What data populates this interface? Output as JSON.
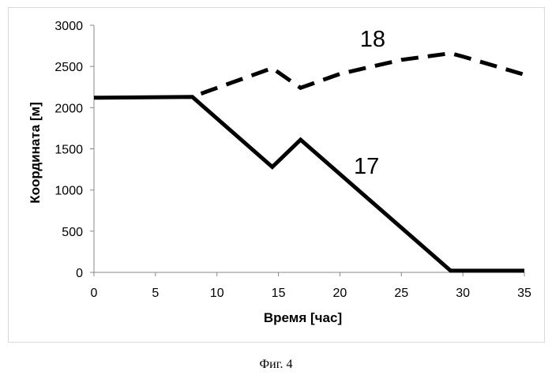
{
  "chart_data": {
    "type": "line",
    "xlabel": "Время [час]",
    "ylabel": "Координата [м]",
    "xlim": [
      0,
      35
    ],
    "ylim": [
      0,
      3000
    ],
    "xticks": [
      0,
      5,
      10,
      15,
      20,
      25,
      30,
      35
    ],
    "yticks": [
      0,
      500,
      1000,
      1500,
      2000,
      2500,
      3000
    ],
    "grid": false,
    "legend": "none",
    "series": [
      {
        "name": "17",
        "style": "solid",
        "color": "#000000",
        "x": [
          0,
          8,
          14.5,
          16.8,
          29,
          35
        ],
        "y": [
          2120,
          2130,
          1280,
          1610,
          20,
          20
        ]
      },
      {
        "name": "18",
        "style": "dashed",
        "color": "#000000",
        "x": [
          8.7,
          14.5,
          16.8,
          20,
          25,
          29,
          30,
          35
        ],
        "y": [
          2170,
          2480,
          2240,
          2410,
          2580,
          2660,
          2620,
          2400
        ]
      }
    ]
  },
  "figure": {
    "caption": "Фиг. 4"
  }
}
